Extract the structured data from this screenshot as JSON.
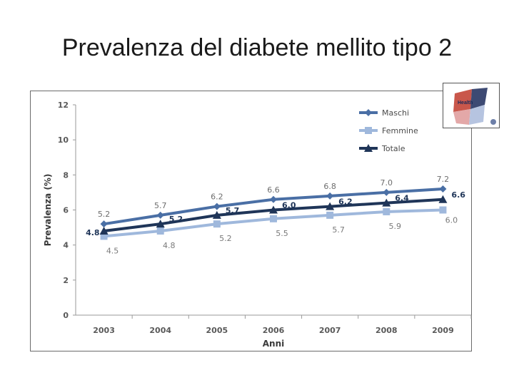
{
  "slide": {
    "title": "Prevalenza del diabete mellito tipo 2"
  },
  "logo": {
    "name": "Health Search logo",
    "text": "Health"
  },
  "chart_data": {
    "type": "line",
    "title": "",
    "xlabel": "Anni",
    "ylabel": "Prevalenza (%)",
    "ylim": [
      0,
      12
    ],
    "yticks": [
      "0",
      "2",
      "4",
      "6",
      "8",
      "10",
      "12"
    ],
    "categories": [
      "2003",
      "2004",
      "2005",
      "2006",
      "2007",
      "2008",
      "2009"
    ],
    "grid": false,
    "legend_position": "top-right",
    "series": [
      {
        "name": "Maschi",
        "color": "#4a6fa5",
        "marker": "diamond",
        "values": [
          5.2,
          5.7,
          6.2,
          6.6,
          6.8,
          7.0,
          7.2
        ],
        "labels": [
          "5.2",
          "5.7",
          "6.2",
          "6.6",
          "6.8",
          "7.0",
          "7.2"
        ]
      },
      {
        "name": "Femmine",
        "color": "#9fb8dc",
        "marker": "square",
        "values": [
          4.5,
          4.8,
          5.2,
          5.5,
          5.7,
          5.9,
          6.0
        ],
        "labels": [
          "4.5",
          "4.8",
          "5.2",
          "5.5",
          "5.7",
          "5.9",
          "6.0"
        ]
      },
      {
        "name": "Totale",
        "color": "#1f3558",
        "marker": "triangle",
        "values": [
          4.8,
          5.2,
          5.7,
          6.0,
          6.2,
          6.4,
          6.6
        ],
        "labels": [
          "4.8",
          "5.2",
          "5.7",
          "6.0",
          "6.2",
          "6.4",
          "6.6"
        ]
      }
    ]
  }
}
